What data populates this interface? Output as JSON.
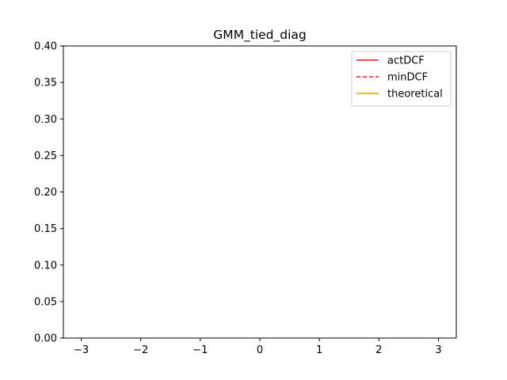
{
  "chart_data": {
    "type": "line",
    "title": "GMM_tied_diag",
    "xlabel": "",
    "ylabel": "",
    "xlim": [
      -3.3,
      3.3
    ],
    "ylim": [
      0.0,
      0.4
    ],
    "xticks": [
      -3,
      -2,
      -1,
      0,
      1,
      2,
      3
    ],
    "xtick_labels": [
      "−3",
      "−2",
      "−1",
      "0",
      "1",
      "2",
      "3"
    ],
    "yticks": [
      0.0,
      0.05,
      0.1,
      0.15,
      0.2,
      0.25,
      0.3,
      0.35,
      0.4
    ],
    "ytick_labels": [
      "0.00",
      "0.05",
      "0.10",
      "0.15",
      "0.20",
      "0.25",
      "0.30",
      "0.35",
      "0.40"
    ],
    "grid": false,
    "legend": "top-right",
    "series": [
      {
        "name": "actDCF",
        "color": "#e41a1c",
        "style": "solid",
        "x": [],
        "y": []
      },
      {
        "name": "minDCF",
        "color": "#e41a1c",
        "style": "dashed",
        "x": [],
        "y": []
      },
      {
        "name": "theoretical",
        "color": "#ccaa00",
        "style": "solid",
        "x": [],
        "y": []
      }
    ]
  }
}
